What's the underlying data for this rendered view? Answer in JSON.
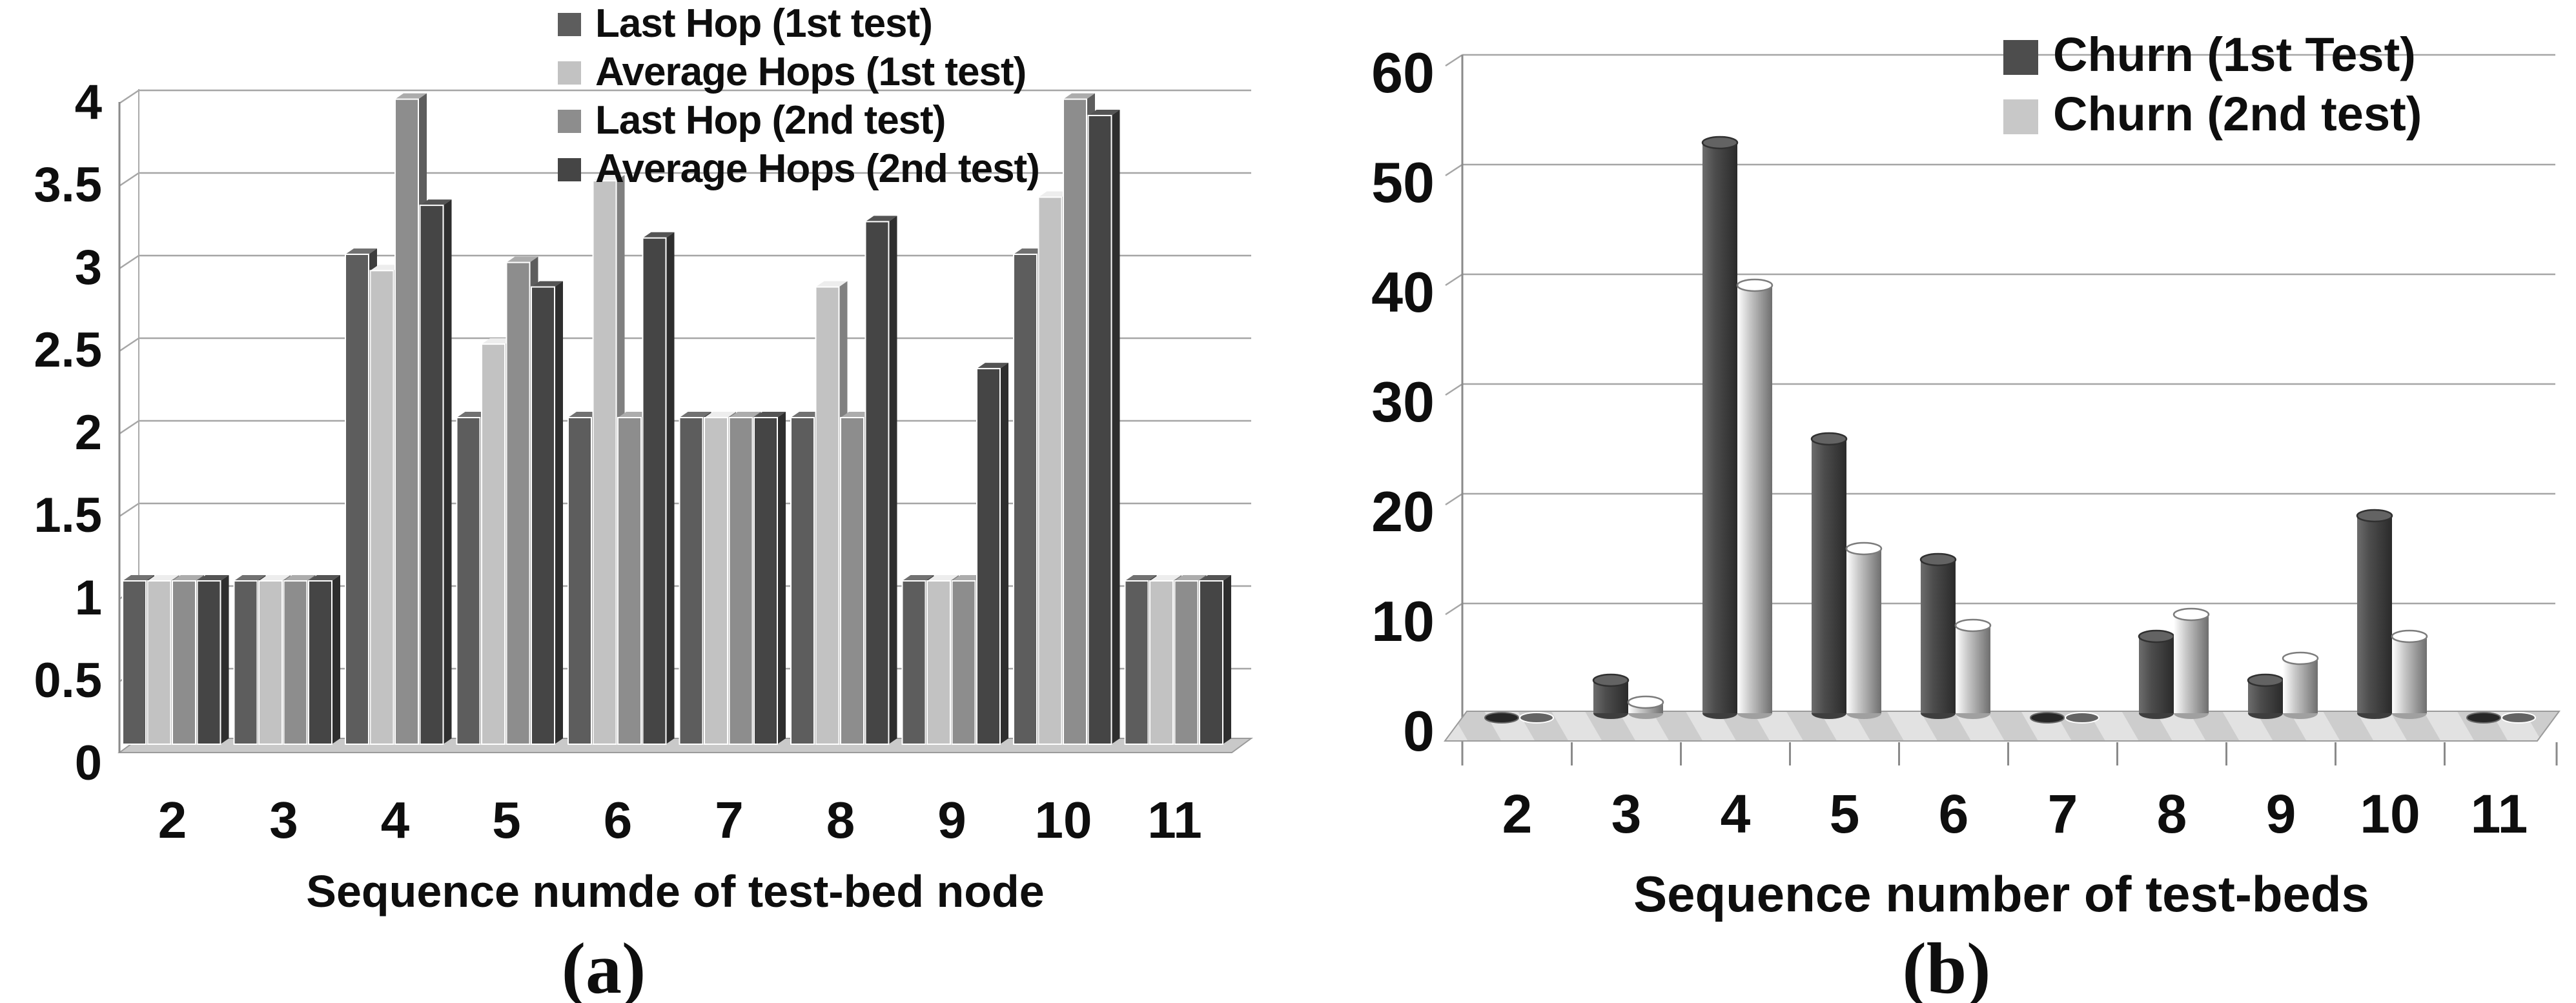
{
  "chart_data": [
    {
      "type": "bar",
      "style": "3d-box",
      "panel": "a",
      "caption": "(a)",
      "title": "",
      "xlabel": "Sequence numde of test-bed node",
      "ylabel": "",
      "categories": [
        "2",
        "3",
        "4",
        "5",
        "6",
        "7",
        "8",
        "9",
        "10",
        "11"
      ],
      "yticks": [
        "4",
        "3.5",
        "3",
        "2.5",
        "2",
        "1.5",
        "1",
        "0.5",
        "0"
      ],
      "ylim": [
        0,
        4
      ],
      "ytick_step": 0.5,
      "grid": true,
      "legend_position": "top-center",
      "series": [
        {
          "name": "Last Hop (1st test)",
          "color": "#5d5d5d",
          "values": [
            1,
            1,
            3,
            2,
            2,
            2,
            2,
            1,
            3,
            1
          ]
        },
        {
          "name": "Average Hops (1st test)",
          "color": "#c2c2c2",
          "values": [
            1,
            1,
            2.9,
            2.45,
            3.45,
            2,
            2.8,
            1,
            3.35,
            1
          ]
        },
        {
          "name": "Last Hop (2nd test)",
          "color": "#8d8d8d",
          "values": [
            1,
            1,
            3.95,
            2.95,
            2,
            2,
            2,
            1,
            3.95,
            1
          ]
        },
        {
          "name": "Average Hops (2nd test)",
          "color": "#454545",
          "values": [
            1,
            1,
            3.3,
            2.8,
            3.1,
            2,
            3.2,
            2.3,
            3.85,
            1
          ]
        }
      ]
    },
    {
      "type": "bar",
      "style": "3d-cylinder",
      "panel": "b",
      "caption": "(b)",
      "title": "",
      "xlabel": "Sequence number of test-beds",
      "ylabel": "",
      "categories": [
        "2",
        "3",
        "4",
        "5",
        "6",
        "7",
        "8",
        "9",
        "10",
        "11"
      ],
      "yticks": [
        "60",
        "50",
        "40",
        "30",
        "20",
        "10",
        "0"
      ],
      "ylim": [
        0,
        60
      ],
      "ytick_step": 10,
      "grid": true,
      "legend_position": "top-right",
      "series": [
        {
          "name": "Churn (1st Test)",
          "color": "#4d4d4d",
          "values": [
            0,
            3,
            52,
            25,
            14,
            0,
            7,
            3,
            18,
            0
          ]
        },
        {
          "name": "Churn (2nd test)",
          "color": "#c8c8c8",
          "values": [
            0,
            1,
            39,
            15,
            8,
            0,
            9,
            5,
            7,
            0
          ]
        }
      ]
    }
  ],
  "colors": {
    "background": "#ffffff",
    "gridline": "#a6a6a6",
    "axis": "#8a8a8a",
    "floor_a": "#c9c9c9",
    "floor_b_light": "#e2e2e2",
    "floor_b_dark": "#cdcdcd",
    "text": "#0e0e0e"
  }
}
